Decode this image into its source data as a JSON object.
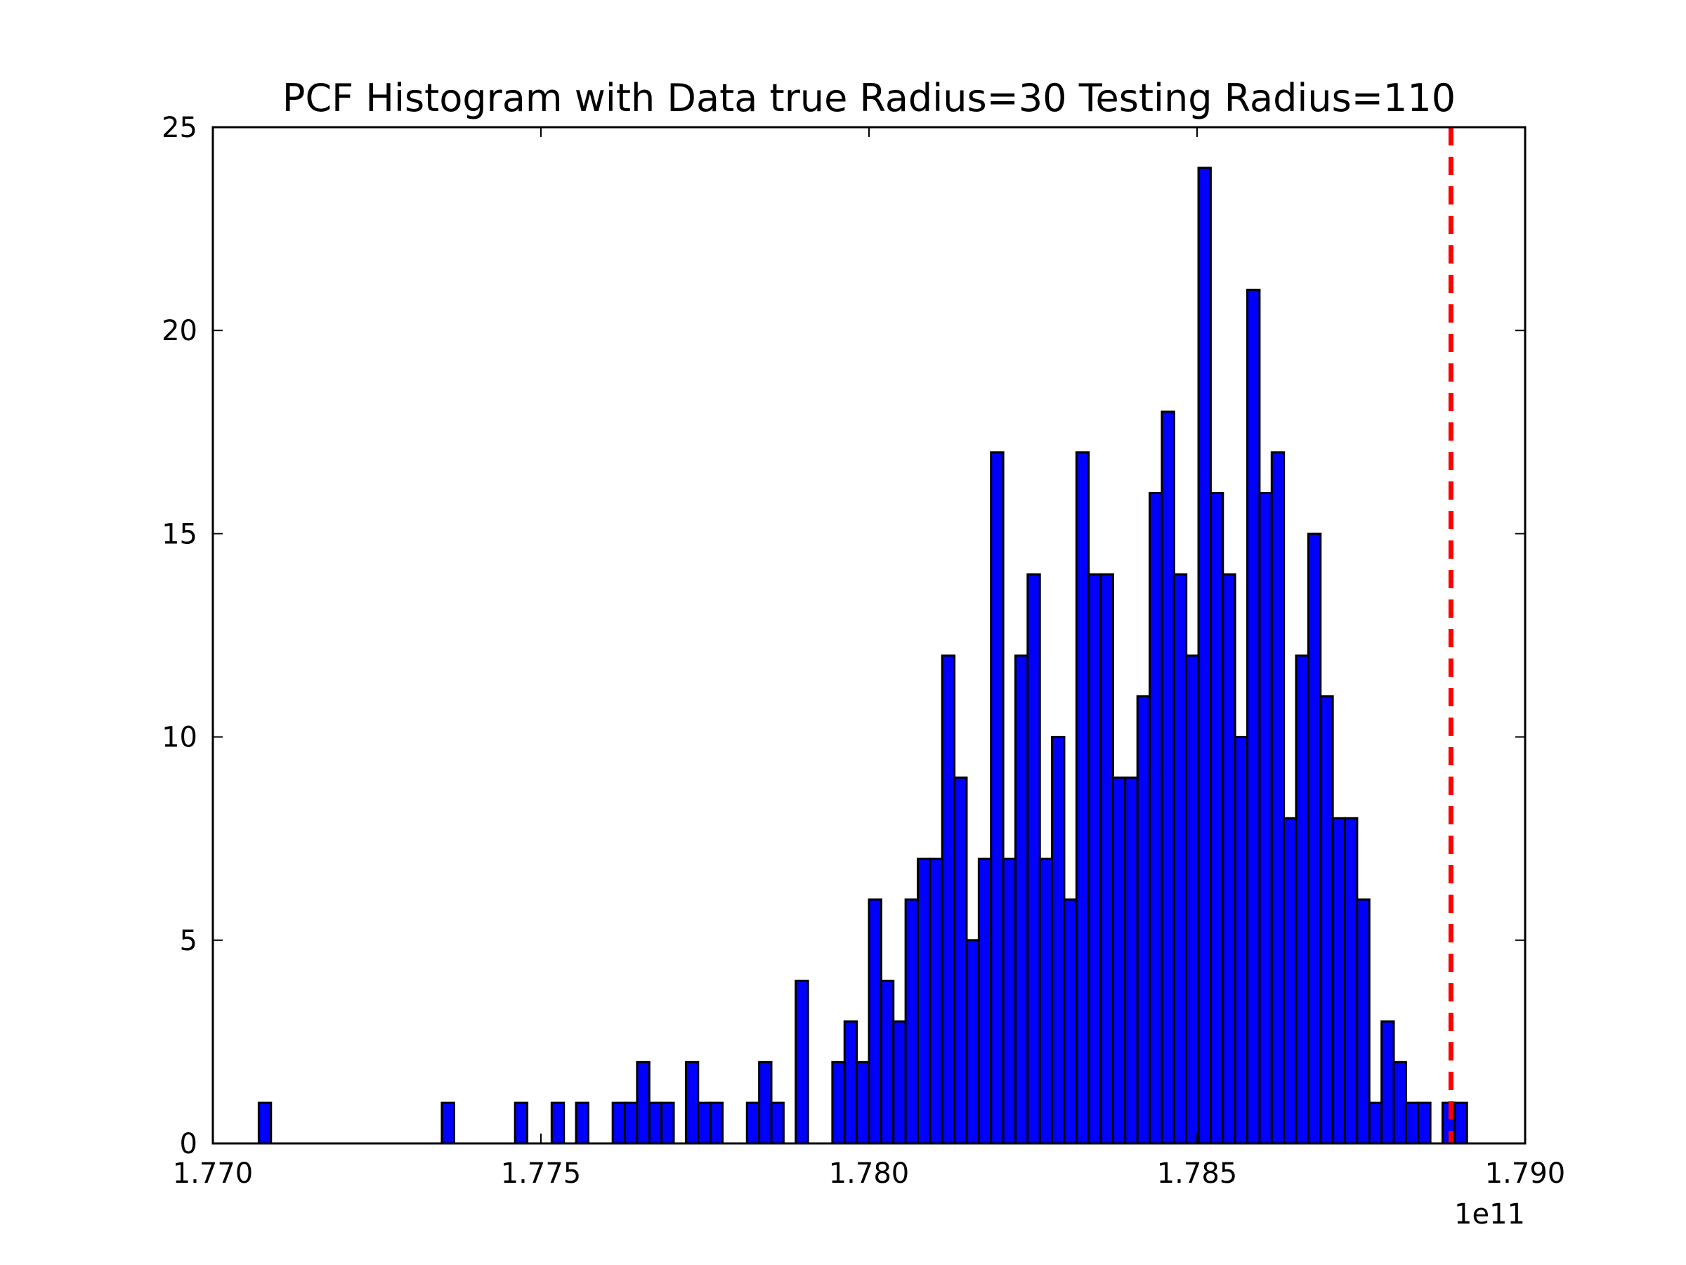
{
  "chart_data": {
    "type": "bar",
    "title": "PCF Histogram with Data true Radius=30 Testing Radius=110",
    "xlabel": "",
    "ylabel": "",
    "x_offset_label": "1e11",
    "x_scale": 100000000000,
    "xlim": [
      1.77,
      1.79
    ],
    "ylim": [
      0,
      25
    ],
    "x_ticks": [
      1.77,
      1.775,
      1.78,
      1.785,
      1.79
    ],
    "x_tick_labels": [
      "1.770",
      "1.775",
      "1.780",
      "1.785",
      "1.790"
    ],
    "y_ticks": [
      0,
      5,
      10,
      15,
      20,
      25
    ],
    "y_tick_labels": [
      "0",
      "5",
      "10",
      "15",
      "20",
      "25"
    ],
    "grid": false,
    "bar_color": "#0000ff",
    "edge_color": "#000000",
    "bins": {
      "start": 1.7707,
      "width": 0.000186,
      "counts": [
        1,
        0,
        0,
        0,
        0,
        0,
        0,
        0,
        0,
        0,
        0,
        0,
        0,
        0,
        0,
        1,
        0,
        0,
        0,
        0,
        0,
        1,
        0,
        0,
        1,
        0,
        1,
        0,
        0,
        1,
        1,
        2,
        1,
        1,
        0,
        2,
        1,
        1,
        0,
        0,
        1,
        2,
        1,
        0,
        4,
        0,
        0,
        2,
        3,
        2,
        6,
        4,
        3,
        6,
        7,
        7,
        12,
        9,
        5,
        7,
        17,
        7,
        12,
        14,
        7,
        10,
        6,
        17,
        14,
        14,
        9,
        9,
        11,
        16,
        18,
        14,
        12,
        24,
        16,
        14,
        10,
        21,
        16,
        17,
        8,
        12,
        15,
        11,
        8,
        8,
        6,
        1,
        3,
        2,
        1,
        1,
        0,
        1,
        1
      ]
    },
    "reference_line": {
      "x": 1.78887,
      "color": "#ff0000",
      "style": "dashed"
    }
  }
}
